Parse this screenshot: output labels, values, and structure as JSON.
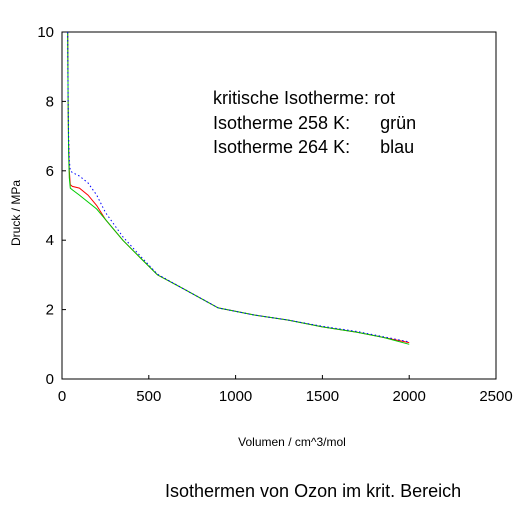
{
  "chart_data": {
    "type": "line",
    "xlabel": "Volumen / cm^3/mol",
    "ylabel": "Druck / MPa",
    "xlim": [
      0,
      2500
    ],
    "ylim": [
      0,
      10
    ],
    "x_ticks": [
      "0",
      "500",
      "1000",
      "1500",
      "2000",
      "2500"
    ],
    "y_ticks": [
      "0",
      "2",
      "4",
      "6",
      "8",
      "10"
    ],
    "grid": false,
    "annotation_lines": [
      "kritische Isotherme: rot",
      "Isotherme 258 K:      grün",
      "Isotherme 264 K:      blau"
    ],
    "series": [
      {
        "color": "#ff0000",
        "style": "solid",
        "points": [
          [
            33,
            10
          ],
          [
            35,
            8
          ],
          [
            38,
            6.8
          ],
          [
            42,
            6.0
          ],
          [
            48,
            5.6
          ],
          [
            60,
            5.55
          ],
          [
            100,
            5.5
          ],
          [
            150,
            5.3
          ],
          [
            200,
            5.0
          ],
          [
            250,
            4.6
          ],
          [
            350,
            4.0
          ],
          [
            450,
            3.5
          ],
          [
            550,
            3.0
          ],
          [
            700,
            2.6
          ],
          [
            900,
            2.05
          ],
          [
            1100,
            1.85
          ],
          [
            1300,
            1.7
          ],
          [
            1500,
            1.5
          ],
          [
            1700,
            1.35
          ],
          [
            1850,
            1.2
          ],
          [
            2000,
            1.05
          ]
        ]
      },
      {
        "color": "#00cc00",
        "style": "solid",
        "points": [
          [
            33,
            10
          ],
          [
            35,
            8
          ],
          [
            38,
            6.5
          ],
          [
            42,
            5.8
          ],
          [
            48,
            5.5
          ],
          [
            60,
            5.45
          ],
          [
            100,
            5.3
          ],
          [
            150,
            5.1
          ],
          [
            200,
            4.9
          ],
          [
            250,
            4.6
          ],
          [
            350,
            4.0
          ],
          [
            450,
            3.5
          ],
          [
            550,
            3.0
          ],
          [
            700,
            2.6
          ],
          [
            900,
            2.05
          ],
          [
            1100,
            1.85
          ],
          [
            1300,
            1.7
          ],
          [
            1500,
            1.5
          ],
          [
            1700,
            1.35
          ],
          [
            1850,
            1.2
          ],
          [
            2000,
            1.0
          ]
        ]
      },
      {
        "color": "#0000ff",
        "style": "dotted",
        "points": [
          [
            33,
            10
          ],
          [
            35,
            8
          ],
          [
            38,
            7.0
          ],
          [
            42,
            6.3
          ],
          [
            48,
            6.0
          ],
          [
            60,
            5.95
          ],
          [
            100,
            5.85
          ],
          [
            150,
            5.65
          ],
          [
            200,
            5.3
          ],
          [
            250,
            4.8
          ],
          [
            350,
            4.1
          ],
          [
            450,
            3.55
          ],
          [
            550,
            3.02
          ],
          [
            700,
            2.6
          ],
          [
            900,
            2.05
          ],
          [
            1100,
            1.85
          ],
          [
            1300,
            1.7
          ],
          [
            1500,
            1.52
          ],
          [
            1700,
            1.37
          ],
          [
            1850,
            1.22
          ],
          [
            2000,
            1.07
          ]
        ]
      }
    ]
  },
  "figure_title": "Isothermen von Ozon im krit. Bereich"
}
